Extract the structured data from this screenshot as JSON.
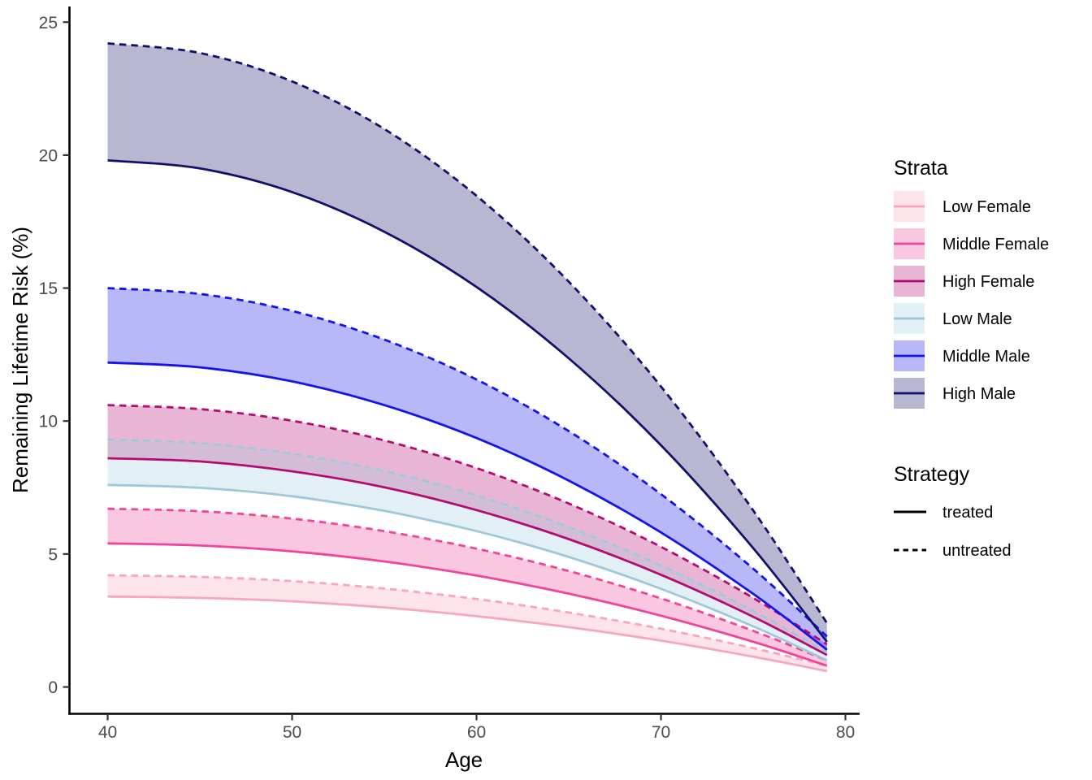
{
  "figure": {
    "background": "#ffffff",
    "axis_line_color": "#000000",
    "tick_color": "#333333",
    "tick_label_color": "#4d4d4d",
    "legend": {
      "strata_title": "Strata",
      "strategy_title": "Strategy",
      "strategy_items": [
        {
          "label": "treated",
          "linetype": "solid"
        },
        {
          "label": "untreated",
          "linetype": "dashed"
        }
      ]
    }
  },
  "chart_data": {
    "type": "line",
    "title": "",
    "xlabel": "Age",
    "ylabel": "Remaining Lifetime Risk (%)",
    "xlim": [
      40,
      80
    ],
    "ylim": [
      0,
      25
    ],
    "x_ticks": [
      40,
      50,
      60,
      70,
      80
    ],
    "y_ticks": [
      0,
      5,
      10,
      15,
      20,
      25
    ],
    "grid": false,
    "legend_position": "right",
    "x": [
      40,
      45,
      50,
      55,
      60,
      65,
      70,
      75,
      79
    ],
    "strata": [
      {
        "id": "low_female",
        "label": "Low Female",
        "color": "#F7A6BD",
        "fill_opacity": 0.3
      },
      {
        "id": "middle_female",
        "label": "Middle Female",
        "color": "#EF459B",
        "fill_opacity": 0.3
      },
      {
        "id": "high_female",
        "label": "High Female",
        "color": "#B40C72",
        "fill_opacity": 0.3
      },
      {
        "id": "low_male",
        "label": "Low Male",
        "color": "#9FC9DB",
        "fill_opacity": 0.3
      },
      {
        "id": "middle_male",
        "label": "Middle Male",
        "color": "#1414EB",
        "fill_opacity": 0.3
      },
      {
        "id": "high_male",
        "label": "High Male",
        "color": "#12126B",
        "fill_opacity": 0.3
      }
    ],
    "series": [
      {
        "name": "Low Female treated",
        "strata": "low_female",
        "strategy": "treated",
        "values": [
          3.4,
          3.35,
          3.22,
          2.99,
          2.66,
          2.25,
          1.74,
          1.14,
          0.6
        ]
      },
      {
        "name": "Low Female untreated",
        "strata": "low_female",
        "strategy": "untreated",
        "values": [
          4.2,
          4.14,
          3.98,
          3.7,
          3.31,
          2.8,
          2.19,
          1.46,
          0.8
        ]
      },
      {
        "name": "Middle Female treated",
        "strata": "middle_female",
        "strategy": "treated",
        "values": [
          5.4,
          5.32,
          5.1,
          4.72,
          4.19,
          3.51,
          2.68,
          1.7,
          0.8
        ]
      },
      {
        "name": "Middle Female untreated",
        "strata": "middle_female",
        "strategy": "untreated",
        "values": [
          6.7,
          6.61,
          6.33,
          5.86,
          5.2,
          4.36,
          3.33,
          2.11,
          1.0
        ]
      },
      {
        "name": "High Female treated",
        "strata": "high_female",
        "strategy": "treated",
        "values": [
          8.6,
          8.48,
          8.11,
          7.51,
          6.65,
          5.56,
          4.22,
          2.64,
          1.2
        ]
      },
      {
        "name": "High Female untreated",
        "strata": "high_female",
        "strategy": "untreated",
        "values": [
          10.6,
          10.45,
          10.01,
          9.27,
          8.23,
          6.9,
          5.27,
          3.35,
          1.6
        ]
      },
      {
        "name": "Low Male treated",
        "strata": "low_male",
        "strategy": "treated",
        "values": [
          7.6,
          7.49,
          7.17,
          6.62,
          5.86,
          4.89,
          3.69,
          2.28,
          1.0
        ]
      },
      {
        "name": "Low Male untreated",
        "strata": "low_male",
        "strategy": "untreated",
        "values": [
          9.3,
          9.17,
          8.77,
          8.12,
          7.2,
          6.01,
          4.57,
          2.86,
          1.3
        ]
      },
      {
        "name": "Middle Male treated",
        "strata": "middle_male",
        "strategy": "treated",
        "values": [
          12.2,
          12.02,
          11.49,
          10.6,
          9.36,
          7.76,
          5.81,
          3.5,
          1.4
        ]
      },
      {
        "name": "Middle Male untreated",
        "strata": "middle_male",
        "strategy": "untreated",
        "values": [
          15.0,
          14.78,
          14.14,
          13.06,
          11.56,
          9.62,
          7.25,
          4.45,
          1.9
        ]
      },
      {
        "name": "High Male treated",
        "strata": "high_male",
        "strategy": "treated",
        "values": [
          19.8,
          19.5,
          18.61,
          17.12,
          15.04,
          12.36,
          9.09,
          5.22,
          1.7
        ]
      },
      {
        "name": "High Male untreated",
        "strata": "high_male",
        "strategy": "untreated",
        "values": [
          24.2,
          23.84,
          22.77,
          20.98,
          18.47,
          15.24,
          11.3,
          6.64,
          2.4
        ]
      }
    ]
  }
}
